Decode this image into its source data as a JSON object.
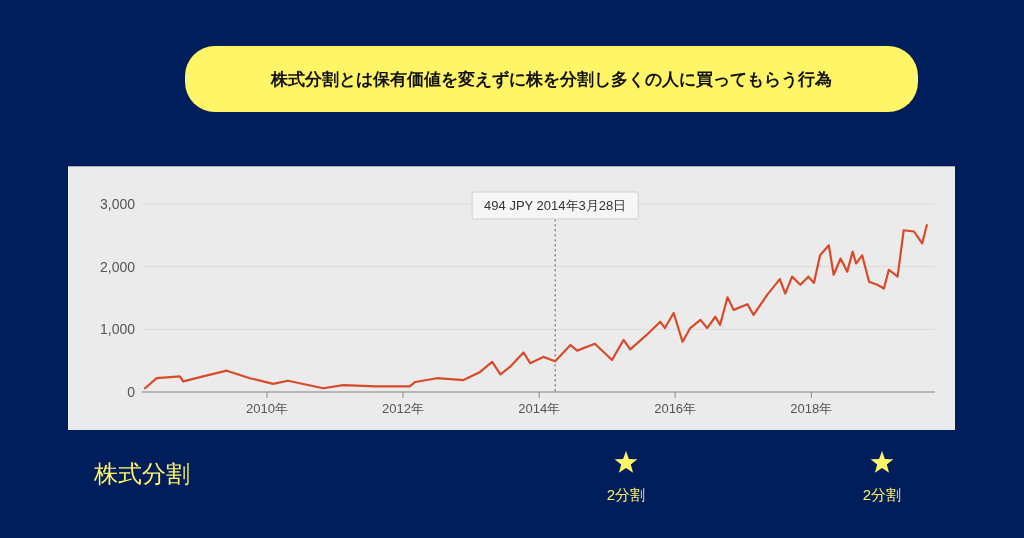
{
  "chart_data": {
    "type": "line",
    "title": "株式分割とは保有価値を変えずに株を分割し多くの人に買ってもらう行為",
    "x": [
      "2008-03-17",
      "2008-05-19",
      "2008-09-20",
      "2008-10-08",
      "2009-01-23",
      "2009-05-30",
      "2009-10-01",
      "2010-02-03",
      "2010-04-23",
      "2010-10-30",
      "2011-02-14",
      "2011-08-08",
      "2012-02-06",
      "2012-03-07",
      "2012-07-01",
      "2012-11-21",
      "2013-02-18",
      "2013-04-24",
      "2013-06-07",
      "2013-07-28",
      "2013-10-09",
      "2013-11-14",
      "2014-01-23",
      "2014-03-28",
      "2014-06-18",
      "2014-07-24",
      "2014-10-27",
      "2015-01-27",
      "2015-03-30",
      "2015-05-05",
      "2015-08-01",
      "2015-10-13",
      "2015-11-07",
      "2015-12-24",
      "2016-02-10",
      "2016-03-22",
      "2016-05-16",
      "2016-06-21",
      "2016-08-04",
      "2016-08-29",
      "2016-10-08",
      "2016-11-10",
      "2017-01-23",
      "2017-02-25",
      "2017-05-09",
      "2017-07-16",
      "2017-08-14",
      "2017-09-20",
      "2017-11-03",
      "2017-12-17",
      "2018-01-15",
      "2018-02-17",
      "2018-04-05",
      "2018-05-01",
      "2018-06-07",
      "2018-07-13",
      "2018-08-11",
      "2018-08-29",
      "2018-10-01",
      "2018-11-07",
      "2018-12-21",
      "2019-01-26",
      "2019-02-21",
      "2019-04-09",
      "2019-05-12",
      "2019-07-06",
      "2019-08-19",
      "2019-09-13"
    ],
    "series": [
      {
        "color": "#d84a2a",
        "values": [
          60,
          220,
          250,
          170,
          250,
          340,
          220,
          130,
          180,
          60,
          110,
          90,
          90,
          160,
          220,
          190,
          320,
          480,
          280,
          400,
          630,
          460,
          560,
          490,
          750,
          660,
          770,
          510,
          830,
          680,
          910,
          1120,
          1020,
          1260,
          800,
          1020,
          1150,
          1020,
          1200,
          1070,
          1510,
          1310,
          1400,
          1230,
          1550,
          1800,
          1570,
          1840,
          1710,
          1840,
          1740,
          2180,
          2340,
          1870,
          2130,
          1920,
          2240,
          2050,
          2180,
          1760,
          1710,
          1650,
          1950,
          1840,
          2580,
          2560,
          2370,
          2660
        ]
      }
    ],
    "xlim": [
      "2008-03-01",
      "2019-10-27"
    ],
    "ylim": [
      0,
      3600
    ],
    "xticks": [
      {
        "value": "2010",
        "label": "2010年"
      },
      {
        "value": "2012",
        "label": "2012年"
      },
      {
        "value": "2014",
        "label": "2014年"
      },
      {
        "value": "2016",
        "label": "2016年"
      },
      {
        "value": "2018",
        "label": "2018年"
      }
    ],
    "yticks": [
      0,
      {
        "value": 1000,
        "label": "1,000"
      },
      {
        "value": 2000,
        "label": "2,000"
      },
      {
        "value": 3000,
        "label": "3,000"
      }
    ],
    "grid": "y",
    "ref_lines": [
      {
        "axis": "x",
        "value": "2014-03-28",
        "line_style": "dotted",
        "color": "#555555"
      }
    ],
    "annotations": [
      "494 JPY  2014年3月28日",
      "2分割",
      "2分割",
      "株式分割"
    ]
  }
}
